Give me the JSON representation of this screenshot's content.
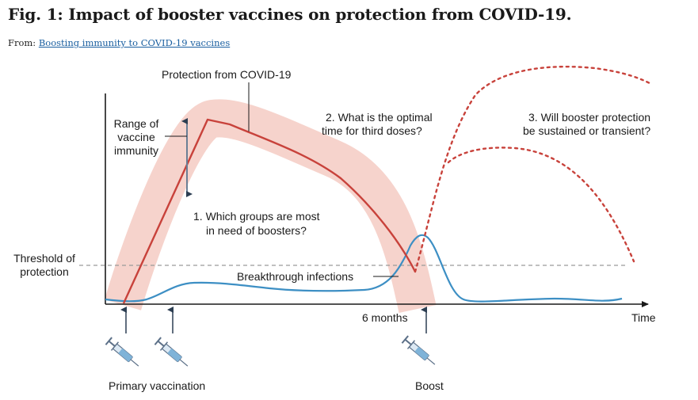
{
  "figure": {
    "title": "Fig. 1: Impact of booster vaccines on protection from COVID-19.",
    "from_prefix": "From: ",
    "from_link": "Boosting immunity to COVID-19 vaccines"
  },
  "diagram": {
    "protection_label": "Protection from COVID-19",
    "range_label": [
      "Range of",
      "vaccine",
      "immunity"
    ],
    "question_1": [
      "1. Which groups are most",
      "in need of boosters?"
    ],
    "question_2": [
      "2. What is the optimal",
      "time for third doses?"
    ],
    "question_3": [
      "3. Will booster protection",
      "be sustained or transient?"
    ],
    "threshold_label": [
      "Threshold of",
      "protection"
    ],
    "breakthrough_label": "Breakthrough infections",
    "six_months_label": "6 months",
    "time_label": "Time",
    "primary_vaccination_label": "Primary vaccination",
    "boost_label": "Boost",
    "colors": {
      "protection": "#c8423b",
      "band": "#f6d3cc",
      "breakthrough": "#3d8fc4",
      "threshold": "#9a9a9a",
      "arrow": "#6b7f95"
    }
  }
}
